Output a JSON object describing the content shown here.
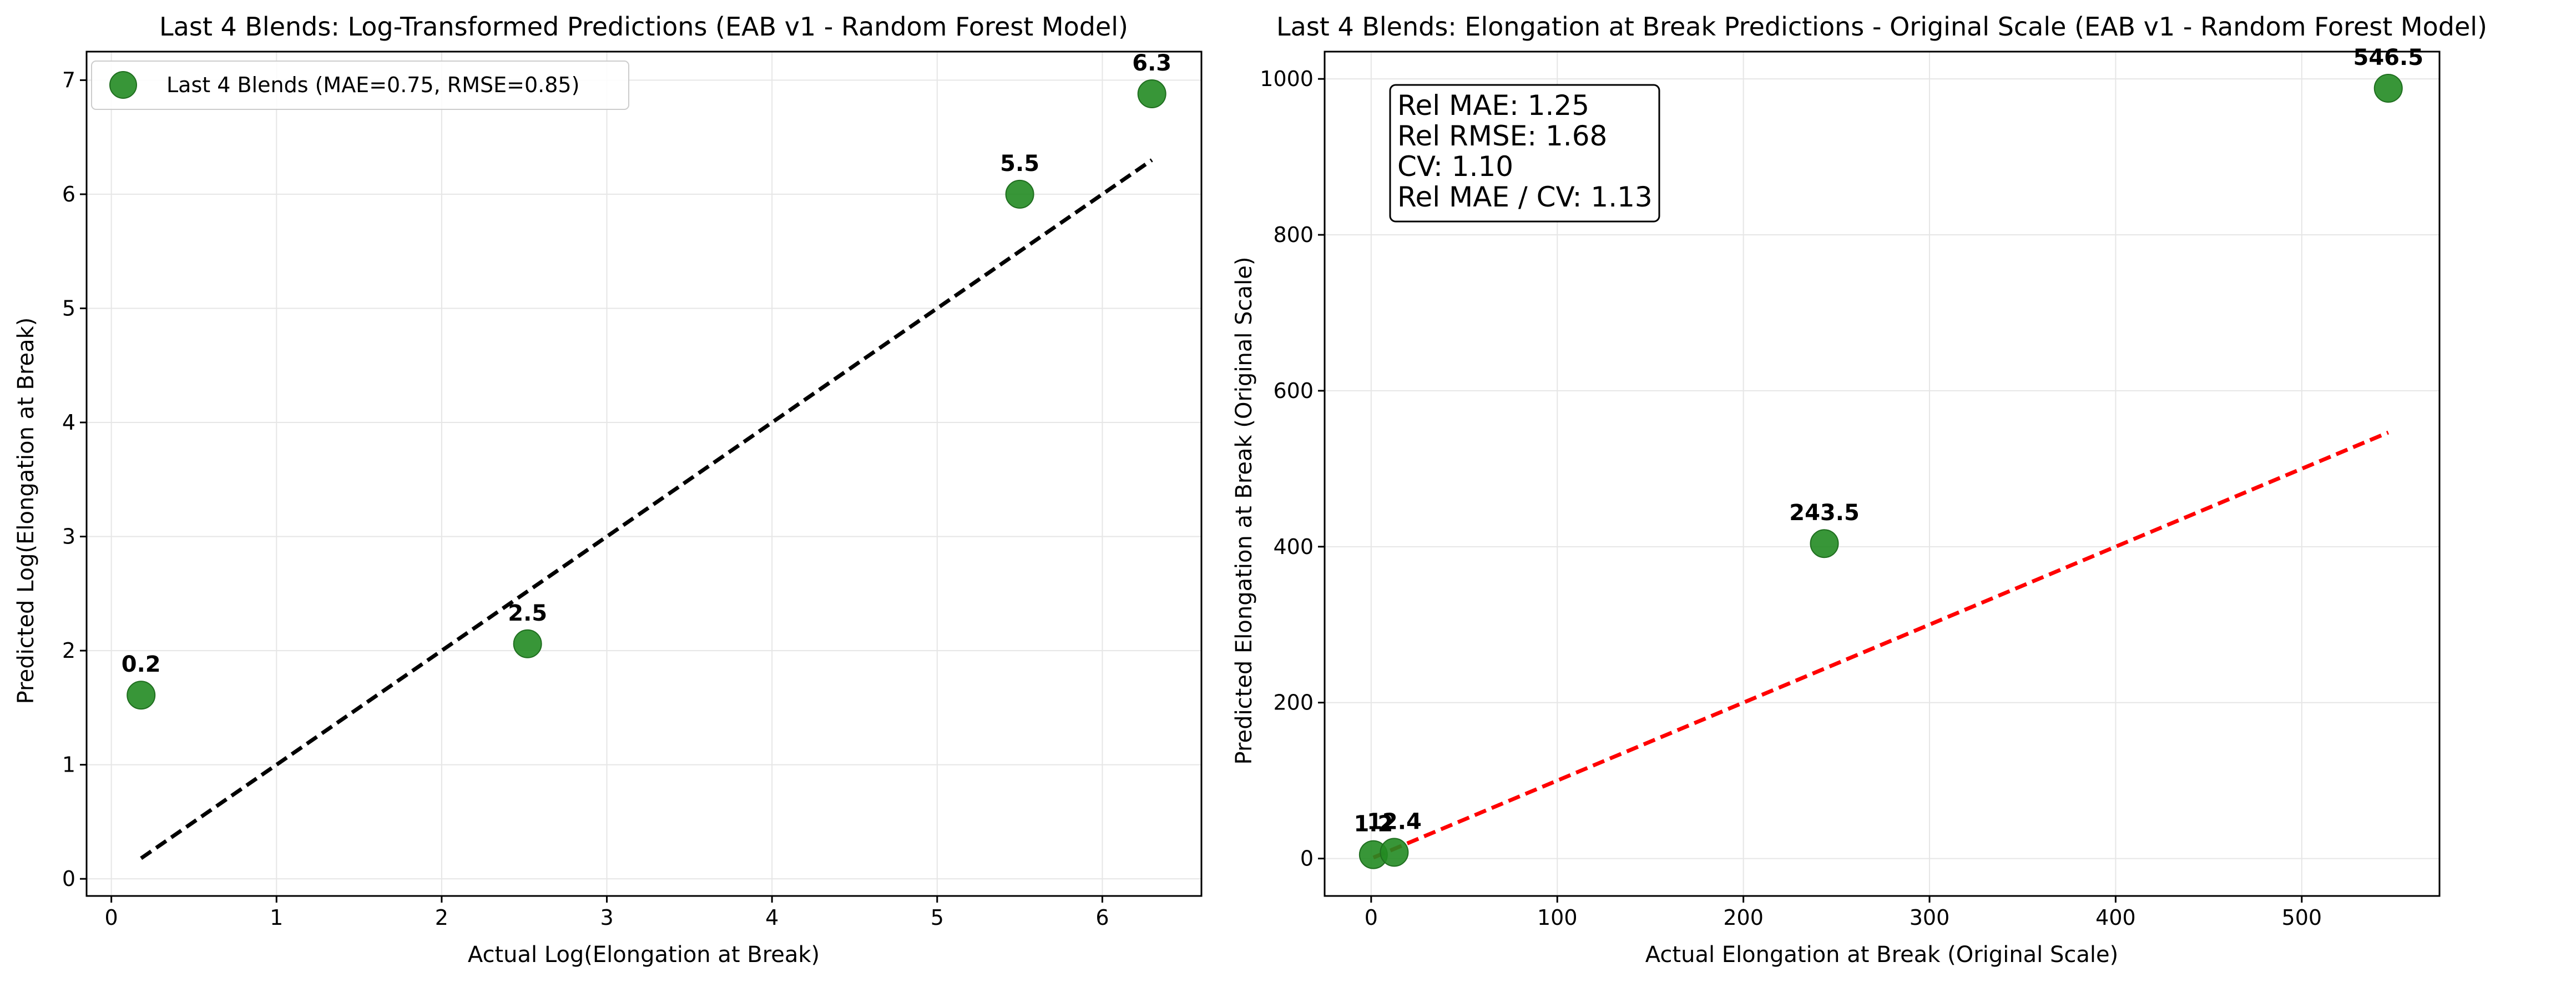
{
  "chart_data": [
    {
      "type": "scatter",
      "title": "Last 4 Blends: Log-Transformed Predictions (EAB v1 - Random Forest Model)",
      "xlabel": "Actual Log(Elongation at Break)",
      "ylabel": "Predicted Log(Elongation at Break)",
      "xlim": [
        -0.15,
        6.6
      ],
      "ylim": [
        -0.15,
        7.25
      ],
      "x_ticks": [
        0,
        1,
        2,
        3,
        4,
        5,
        6
      ],
      "y_ticks": [
        0,
        1,
        2,
        3,
        4,
        5,
        6,
        7
      ],
      "grid": true,
      "legend": {
        "position": "top-left",
        "entries": [
          "Last 4 Blends (MAE=0.75, RMSE=0.85)"
        ]
      },
      "series": [
        {
          "name": "Last 4 Blends (MAE=0.75, RMSE=0.85)",
          "color": "#228B22",
          "x": [
            0.18,
            2.52,
            5.5,
            6.3
          ],
          "y": [
            1.61,
            2.06,
            6.0,
            6.88
          ],
          "labels": [
            "0.2",
            "2.5",
            "5.5",
            "6.3"
          ]
        }
      ],
      "reference_line": {
        "x": [
          0.18,
          6.3
        ],
        "y": [
          0.18,
          6.3
        ],
        "style": "dashed",
        "color": "#000000"
      }
    },
    {
      "type": "scatter",
      "title": "Last 4 Blends: Elongation at Break Predictions - Original Scale (EAB v1 - Random Forest Model)",
      "xlabel": "Actual Elongation at Break (Original Scale)",
      "ylabel": "Predicted Elongation at Break (Original Scale)",
      "xlim": [
        -25,
        574
      ],
      "ylim": [
        -48,
        1035
      ],
      "x_ticks": [
        0,
        100,
        200,
        300,
        400,
        500
      ],
      "y_ticks": [
        0,
        200,
        400,
        600,
        800,
        1000
      ],
      "grid": true,
      "annotation_box": {
        "position": "top-left",
        "lines": [
          "Rel MAE: 1.25",
          "Rel RMSE: 1.68",
          "CV: 1.10",
          "Rel MAE / CV: 1.13"
        ]
      },
      "series": [
        {
          "color": "#228B22",
          "x": [
            1.2,
            12.4,
            243.5,
            546.5
          ],
          "y": [
            5,
            8,
            404,
            988
          ],
          "labels": [
            "1.2",
            "12.4",
            "243.5",
            "546.5"
          ]
        }
      ],
      "reference_line": {
        "x": [
          1.2,
          546.5
        ],
        "y": [
          1.2,
          546.5
        ],
        "style": "dashed",
        "color": "#ff0000"
      }
    }
  ]
}
